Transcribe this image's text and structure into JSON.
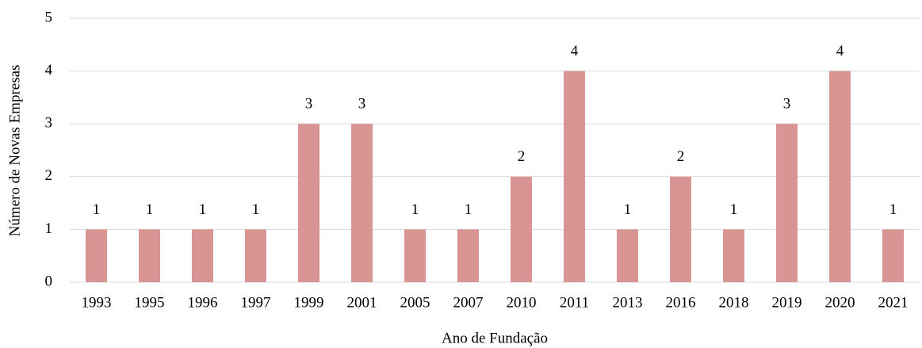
{
  "chart_data": {
    "type": "bar",
    "x_label": "Ano de Fundação",
    "y_label": "Número de Novas Empresas",
    "categories": [
      "1993",
      "1995",
      "1996",
      "1997",
      "1999",
      "2001",
      "2005",
      "2007",
      "2010",
      "2011",
      "2013",
      "2016",
      "2018",
      "2019",
      "2020",
      "2021"
    ],
    "values": [
      1,
      1,
      1,
      1,
      3,
      3,
      1,
      1,
      2,
      4,
      1,
      2,
      1,
      3,
      4,
      1
    ],
    "color": "#d99594",
    "ylim": [
      0,
      5
    ],
    "yticks": [
      0,
      1,
      2,
      3,
      4,
      5
    ],
    "grid": true
  }
}
